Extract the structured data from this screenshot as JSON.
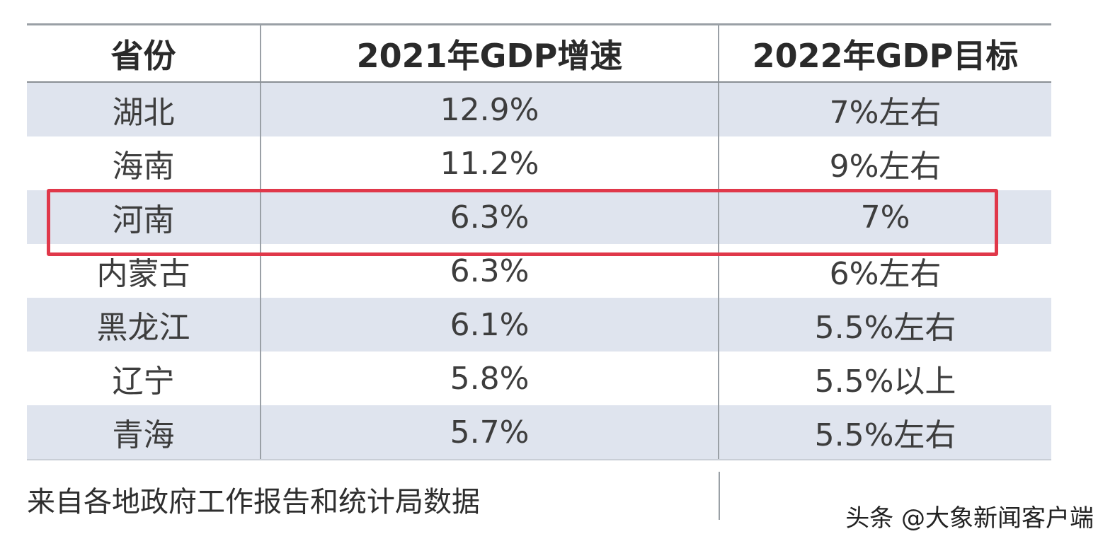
{
  "table": {
    "headers": [
      "省份",
      "2021年GDP增速",
      "2022年GDP目标"
    ],
    "rows": [
      {
        "province": "湖北",
        "growth_2021": "12.9%",
        "target_2022": "7%左右"
      },
      {
        "province": "海南",
        "growth_2021": "11.2%",
        "target_2022": "9%左右"
      },
      {
        "province": "河南",
        "growth_2021": "6.3%",
        "target_2022": "7%",
        "highlighted": true
      },
      {
        "province": "内蒙古",
        "growth_2021": "6.3%",
        "target_2022": "6%左右"
      },
      {
        "province": "黑龙江",
        "growth_2021": "6.1%",
        "target_2022": "5.5%左右"
      },
      {
        "province": "辽宁",
        "growth_2021": "5.8%",
        "target_2022": "5.5%以上"
      },
      {
        "province": "青海",
        "growth_2021": "5.7%",
        "target_2022": "5.5%左右"
      }
    ],
    "source_note": "来自各地政府工作报告和统计局数据"
  },
  "watermark": "头条 @大象新闻客户端",
  "colors": {
    "row_shade": "#dfe4ee",
    "highlight_border": "#e0384a",
    "grid_line": "#9aa0a6"
  }
}
